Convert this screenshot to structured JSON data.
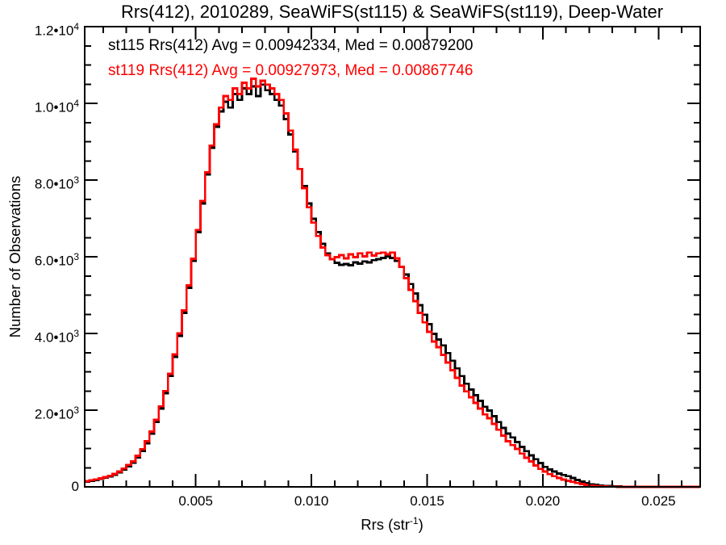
{
  "title": "Rrs(412), 2010289, SeaWiFS(st115) & SeaWiFS(st119), Deep-Water",
  "legend": [
    {
      "series": "st115",
      "label": "st115 Rrs(412) Avg = 0.00942334, Med = 0.00879200",
      "color": "#000000"
    },
    {
      "series": "st119",
      "label": "st119 Rrs(412) Avg = 0.00927973, Med = 0.00867746",
      "color": "#ff0000"
    }
  ],
  "axes": {
    "x": {
      "min": 0.0002,
      "max": 0.0268,
      "minor_step": 0.001,
      "title_prefix": "Rrs (str",
      "title_sup": "-1",
      "title_suffix": ")",
      "major_ticks": [
        {
          "v": 0.005,
          "label": "0.005"
        },
        {
          "v": 0.01,
          "label": "0.010"
        },
        {
          "v": 0.015,
          "label": "0.015"
        },
        {
          "v": 0.02,
          "label": "0.020"
        },
        {
          "v": 0.025,
          "label": "0.025"
        }
      ]
    },
    "y": {
      "min": 0,
      "max": 12000,
      "minor_step": 500,
      "title": "Number of Observations",
      "major_ticks": [
        {
          "v": 0,
          "m": "0",
          "e": ""
        },
        {
          "v": 2000,
          "m": "2.0•10",
          "e": "3"
        },
        {
          "v": 4000,
          "m": "4.0•10",
          "e": "3"
        },
        {
          "v": 6000,
          "m": "6.0•10",
          "e": "3"
        },
        {
          "v": 8000,
          "m": "8.0•10",
          "e": "3"
        },
        {
          "v": 10000,
          "m": "1.0•10",
          "e": "4"
        },
        {
          "v": 12000,
          "m": "1.2•10",
          "e": "4"
        }
      ]
    }
  },
  "chart_data": {
    "type": "line",
    "style": "histogram_step",
    "title": "Rrs(412), 2010289, SeaWiFS(st115) & SeaWiFS(st119), Deep-Water",
    "xlabel": "Rrs (str^-1)",
    "ylabel": "Number of Observations",
    "xlim": [
      0.0002,
      0.0268
    ],
    "ylim": [
      0,
      12000
    ],
    "grid": false,
    "legend_position": "top-left-inside",
    "x_start": 0.0002,
    "x_step": 0.0002,
    "series": [
      {
        "name": "st115",
        "color": "#000000",
        "avg": 0.00942334,
        "med": 0.008792,
        "values": [
          140,
          160,
          180,
          205,
          235,
          270,
          315,
          375,
          450,
          540,
          630,
          770,
          940,
          1140,
          1390,
          1690,
          2040,
          2440,
          2890,
          3390,
          3940,
          4540,
          5190,
          5890,
          6640,
          7390,
          8140,
          8840,
          9390,
          9790,
          10040,
          9890,
          10240,
          10090,
          10390,
          10240,
          10440,
          10190,
          10490,
          10340,
          10240,
          10090,
          9940,
          9590,
          9190,
          8740,
          8290,
          7840,
          7390,
          6990,
          6640,
          6340,
          6090,
          5940,
          5840,
          5790,
          5810,
          5780,
          5850,
          5820,
          5880,
          5850,
          5910,
          5940,
          5970,
          6010,
          5970,
          5890,
          5740,
          5540,
          5290,
          5040,
          4740,
          4490,
          4240,
          3990,
          3840,
          3690,
          3490,
          3290,
          3090,
          2890,
          2690,
          2540,
          2390,
          2240,
          2090,
          1990,
          1840,
          1690,
          1540,
          1390,
          1290,
          1170,
          1040,
          930,
          820,
          720,
          620,
          520,
          450,
          400,
          350,
          310,
          280,
          230,
          180,
          140,
          100,
          70,
          50,
          38,
          28,
          20,
          14,
          10,
          7,
          5,
          3,
          2,
          1,
          1,
          0,
          0,
          0,
          0,
          0,
          0,
          0,
          0,
          0,
          0,
          0
        ]
      },
      {
        "name": "st119",
        "color": "#ff0000",
        "avg": 0.00927973,
        "med": 0.00867746,
        "values": [
          150,
          175,
          195,
          220,
          250,
          290,
          335,
          400,
          480,
          575,
          665,
          810,
          985,
          1190,
          1445,
          1750,
          2100,
          2500,
          2950,
          3450,
          4000,
          4600,
          5250,
          5950,
          6700,
          7450,
          8200,
          8900,
          9450,
          9890,
          10190,
          10090,
          10390,
          10240,
          10540,
          10390,
          10640,
          10440,
          10590,
          10490,
          10390,
          10240,
          10090,
          9740,
          9290,
          8790,
          8290,
          7790,
          7290,
          6890,
          6540,
          6240,
          6040,
          5940,
          5990,
          6040,
          5960,
          6060,
          5990,
          6090,
          6010,
          6110,
          6030,
          6090,
          6110,
          6060,
          6110,
          5960,
          5740,
          5440,
          5140,
          4840,
          4540,
          4290,
          4040,
          3790,
          3640,
          3440,
          3240,
          3040,
          2840,
          2640,
          2490,
          2340,
          2190,
          2040,
          1890,
          1790,
          1640,
          1490,
          1340,
          1190,
          1090,
          990,
          870,
          760,
          660,
          560,
          470,
          400,
          330,
          280,
          230,
          190,
          160,
          130,
          100,
          75,
          55,
          38,
          25,
          16,
          10,
          6,
          4,
          2,
          1,
          0,
          0,
          0,
          0,
          0,
          0,
          0,
          0,
          0,
          0,
          0,
          0,
          0,
          0,
          0,
          0
        ]
      }
    ]
  }
}
